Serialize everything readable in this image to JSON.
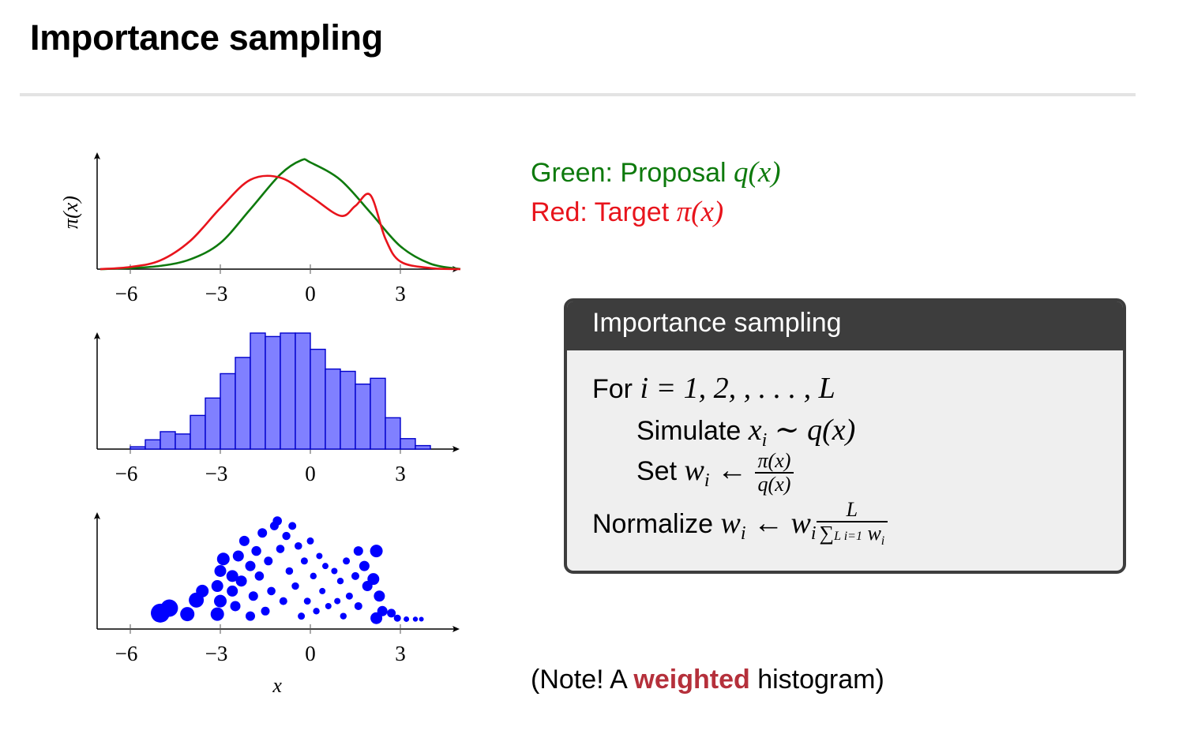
{
  "slide": {
    "title": "Importance sampling",
    "legend": {
      "green_prefix": "Green: Proposal ",
      "green_math": "q(x)",
      "red_prefix": "Red: Target ",
      "red_math": "π(x)",
      "green_color": "#0e7a0d",
      "red_color": "#e8141c"
    },
    "algorithm": {
      "title": "Importance sampling",
      "line1_text": "For ",
      "line1_math": "i = 1, 2, , . . . , L",
      "line2_text": "Simulate ",
      "line2_math": "x",
      "line2_sub": "i",
      "line2_rest": " ∼ q(x)",
      "line3_text": "Set ",
      "line3_math": "w",
      "line3_sub": "i",
      "line3_arrow": " ← ",
      "line3_num": "π(x)",
      "line3_den": "q(x)",
      "line4_text": "Normalize ",
      "line4_math": "w",
      "line4_sub": "i",
      "line4_arrow": " ← w",
      "line4_sub2": "i",
      "line4_num": "L",
      "line4_den": "∑",
      "line4_den_lims": "L i=1",
      "line4_den_rest": " w",
      "line4_den_sub": "i"
    },
    "note": {
      "prefix": "(Note!  A ",
      "bold": "weighted",
      "suffix": " histogram)"
    }
  },
  "chart_data": [
    {
      "type": "line",
      "ylabel": "π(x)",
      "xlabel": "",
      "xlim": [
        -7,
        5
      ],
      "x_ticks": [
        -6,
        -3,
        0,
        3
      ],
      "x_tick_labels": [
        "−6",
        "−3",
        "0",
        "3"
      ],
      "series": [
        {
          "color": "#0e7a0d",
          "x": [
            -7,
            -6,
            -5,
            -4,
            -3,
            -2,
            -1,
            -0.3,
            0,
            1,
            2,
            3,
            4,
            5
          ],
          "y": [
            0.0,
            0.01,
            0.03,
            0.09,
            0.24,
            0.55,
            0.87,
            1.0,
            0.98,
            0.82,
            0.52,
            0.21,
            0.05,
            0.0
          ]
        },
        {
          "color": "#e8141c",
          "x": [
            -7,
            -6,
            -5,
            -4,
            -3,
            -2,
            -1,
            0,
            1,
            1.5,
            2,
            2.5,
            3,
            4,
            5
          ],
          "y": [
            0.0,
            0.02,
            0.08,
            0.26,
            0.56,
            0.82,
            0.84,
            0.67,
            0.49,
            0.58,
            0.68,
            0.28,
            0.07,
            0.01,
            0.0
          ]
        }
      ]
    },
    {
      "type": "bar",
      "xlabel": "",
      "xlim": [
        -7,
        5
      ],
      "x_ticks": [
        -6,
        -3,
        0,
        3
      ],
      "x_tick_labels": [
        "−6",
        "−3",
        "0",
        "3"
      ],
      "bin_width": 0.5,
      "bin_left_edges": [
        -6,
        -5.5,
        -5,
        -4.5,
        -4,
        -3.5,
        -3,
        -2.5,
        -2,
        -1.5,
        -1,
        -0.5,
        0,
        0.5,
        1,
        1.5,
        2,
        2.5,
        3,
        3.5
      ],
      "values": [
        0.02,
        0.08,
        0.15,
        0.13,
        0.29,
        0.44,
        0.65,
        0.79,
        1.0,
        0.97,
        1.0,
        1.0,
        0.86,
        0.69,
        0.67,
        0.56,
        0.61,
        0.27,
        0.09,
        0.03
      ],
      "color": "#8080ff",
      "edge_color": "#0000cc"
    },
    {
      "type": "scatter",
      "xlabel": "x",
      "xlim": [
        -7,
        5
      ],
      "x_ticks": [
        -6,
        -3,
        0,
        3
      ],
      "x_tick_labels": [
        "−6",
        "−3",
        "0",
        "3"
      ],
      "color": "#0000ff",
      "points": [
        {
          "x": -5.0,
          "y": 0.08,
          "w": 1.0
        },
        {
          "x": -4.7,
          "y": 0.13,
          "w": 0.9
        },
        {
          "x": -4.1,
          "y": 0.07,
          "w": 0.7
        },
        {
          "x": -3.8,
          "y": 0.21,
          "w": 0.75
        },
        {
          "x": -3.6,
          "y": 0.3,
          "w": 0.6
        },
        {
          "x": -3.1,
          "y": 0.07,
          "w": 0.65
        },
        {
          "x": -3.0,
          "y": 0.2,
          "w": 0.6
        },
        {
          "x": -3.1,
          "y": 0.35,
          "w": 0.55
        },
        {
          "x": -3.0,
          "y": 0.5,
          "w": 0.55
        },
        {
          "x": -2.9,
          "y": 0.62,
          "w": 0.6
        },
        {
          "x": -2.6,
          "y": 0.45,
          "w": 0.55
        },
        {
          "x": -2.6,
          "y": 0.3,
          "w": 0.5
        },
        {
          "x": -2.5,
          "y": 0.15,
          "w": 0.45
        },
        {
          "x": -2.4,
          "y": 0.65,
          "w": 0.5
        },
        {
          "x": -2.3,
          "y": 0.4,
          "w": 0.5
        },
        {
          "x": -2.2,
          "y": 0.8,
          "w": 0.45
        },
        {
          "x": -2.0,
          "y": 0.55,
          "w": 0.45
        },
        {
          "x": -2.0,
          "y": 0.05,
          "w": 0.4
        },
        {
          "x": -1.9,
          "y": 0.25,
          "w": 0.4
        },
        {
          "x": -1.8,
          "y": 0.7,
          "w": 0.42
        },
        {
          "x": -1.7,
          "y": 0.45,
          "w": 0.38
        },
        {
          "x": -1.6,
          "y": 0.88,
          "w": 0.4
        },
        {
          "x": -1.5,
          "y": 0.1,
          "w": 0.35
        },
        {
          "x": -1.4,
          "y": 0.6,
          "w": 0.35
        },
        {
          "x": -1.3,
          "y": 0.3,
          "w": 0.33
        },
        {
          "x": -1.2,
          "y": 0.95,
          "w": 0.35
        },
        {
          "x": -1.1,
          "y": 1.0,
          "w": 0.38
        },
        {
          "x": -1.0,
          "y": 0.72,
          "w": 0.33
        },
        {
          "x": -0.9,
          "y": 0.2,
          "w": 0.3
        },
        {
          "x": -0.8,
          "y": 0.85,
          "w": 0.32
        },
        {
          "x": -0.7,
          "y": 0.5,
          "w": 0.28
        },
        {
          "x": -0.6,
          "y": 0.95,
          "w": 0.3
        },
        {
          "x": -0.5,
          "y": 0.35,
          "w": 0.27
        },
        {
          "x": -0.4,
          "y": 0.75,
          "w": 0.28
        },
        {
          "x": -0.3,
          "y": 0.05,
          "w": 0.25
        },
        {
          "x": -0.2,
          "y": 0.6,
          "w": 0.25
        },
        {
          "x": -0.1,
          "y": 0.2,
          "w": 0.24
        },
        {
          "x": 0.0,
          "y": 0.8,
          "w": 0.25
        },
        {
          "x": 0.1,
          "y": 0.45,
          "w": 0.22
        },
        {
          "x": 0.2,
          "y": 0.1,
          "w": 0.22
        },
        {
          "x": 0.3,
          "y": 0.65,
          "w": 0.2
        },
        {
          "x": 0.4,
          "y": 0.3,
          "w": 0.2
        },
        {
          "x": 0.5,
          "y": 0.55,
          "w": 0.2
        },
        {
          "x": 0.6,
          "y": 0.15,
          "w": 0.2
        },
        {
          "x": 0.8,
          "y": 0.5,
          "w": 0.2
        },
        {
          "x": 0.9,
          "y": 0.2,
          "w": 0.2
        },
        {
          "x": 1.0,
          "y": 0.4,
          "w": 0.22
        },
        {
          "x": 1.1,
          "y": 0.05,
          "w": 0.22
        },
        {
          "x": 1.2,
          "y": 0.6,
          "w": 0.25
        },
        {
          "x": 1.3,
          "y": 0.25,
          "w": 0.25
        },
        {
          "x": 1.5,
          "y": 0.45,
          "w": 0.3
        },
        {
          "x": 1.6,
          "y": 0.15,
          "w": 0.3
        },
        {
          "x": 1.6,
          "y": 0.7,
          "w": 0.4
        },
        {
          "x": 1.8,
          "y": 0.55,
          "w": 0.45
        },
        {
          "x": 1.9,
          "y": 0.35,
          "w": 0.45
        },
        {
          "x": 2.1,
          "y": 0.42,
          "w": 0.55
        },
        {
          "x": 2.2,
          "y": 0.7,
          "w": 0.6
        },
        {
          "x": 2.3,
          "y": 0.25,
          "w": 0.5
        },
        {
          "x": 2.4,
          "y": 0.1,
          "w": 0.45
        },
        {
          "x": 2.2,
          "y": 0.03,
          "w": 0.55
        },
        {
          "x": 2.7,
          "y": 0.08,
          "w": 0.35
        },
        {
          "x": 2.9,
          "y": 0.03,
          "w": 0.25
        },
        {
          "x": 3.2,
          "y": 0.02,
          "w": 0.15
        },
        {
          "x": 3.5,
          "y": 0.02,
          "w": 0.12
        },
        {
          "x": 3.7,
          "y": 0.02,
          "w": 0.1
        }
      ]
    }
  ]
}
